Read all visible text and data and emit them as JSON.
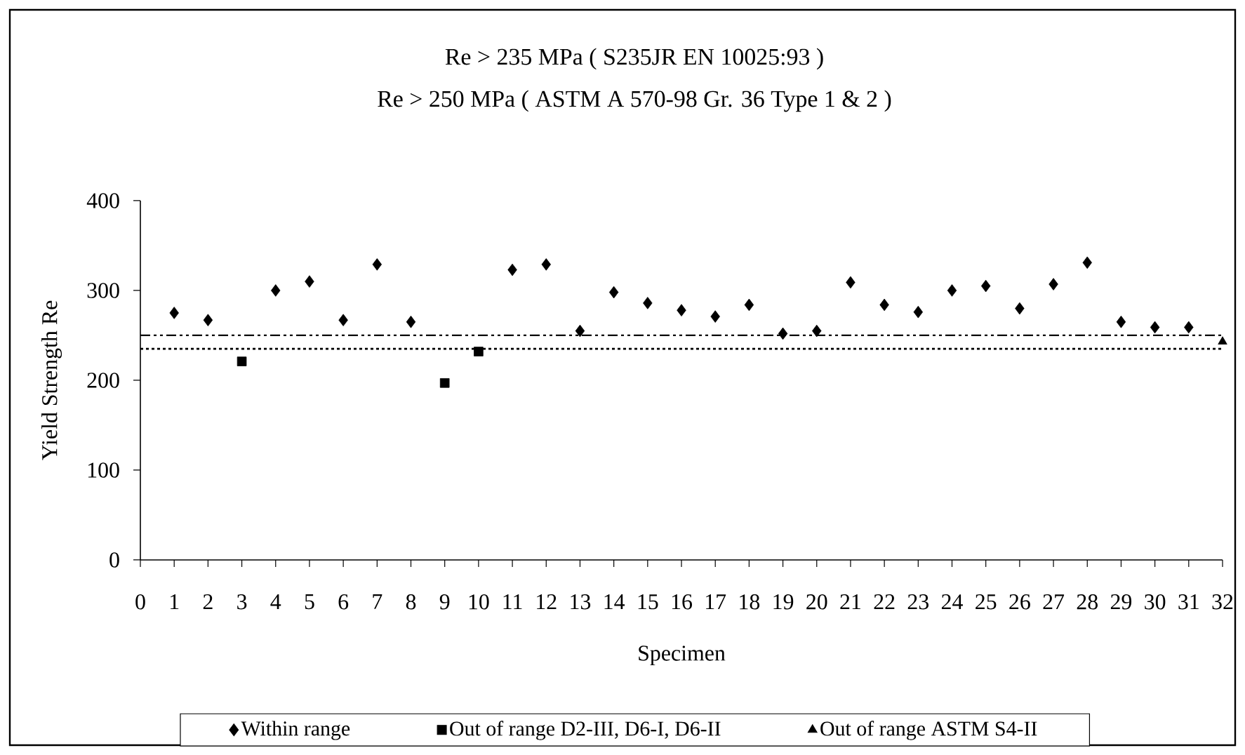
{
  "chart_data": {
    "type": "scatter",
    "title": "Re > 235 MPa ( S235JR EN 10025:93 )",
    "subtitle": "Re > 250 MPa ( ASTM A 570-98 Gr. 36 Type 1 & 2 )",
    "xlabel": "Specimen",
    "ylabel": "Yield Strength Re",
    "xlim": [
      0,
      32
    ],
    "ylim": [
      0,
      400
    ],
    "xticks": [
      0,
      1,
      2,
      3,
      4,
      5,
      6,
      7,
      8,
      9,
      10,
      11,
      12,
      13,
      14,
      15,
      16,
      17,
      18,
      19,
      20,
      21,
      22,
      23,
      24,
      25,
      26,
      27,
      28,
      29,
      30,
      31,
      32
    ],
    "yticks": [
      0,
      100,
      200,
      300,
      400
    ],
    "legend": "bottom",
    "series": [
      {
        "name": "Within range",
        "color": "#000000",
        "marker": "diamond",
        "x": [
          1,
          2,
          4,
          5,
          6,
          7,
          8,
          11,
          12,
          13,
          14,
          15,
          16,
          17,
          18,
          19,
          20,
          21,
          22,
          23,
          24,
          25,
          26,
          27,
          28,
          29,
          30,
          31
        ],
        "values": [
          275,
          267,
          300,
          310,
          267,
          329,
          265,
          323,
          329,
          255,
          298,
          286,
          278,
          271,
          284,
          252,
          255,
          309,
          284,
          276,
          300,
          305,
          280,
          307,
          331,
          265,
          259,
          259
        ]
      },
      {
        "name": "Out of range D2-III, D6-I, D6-II",
        "color": "#000000",
        "marker": "square",
        "x": [
          3,
          9,
          10
        ],
        "values": [
          221,
          197,
          232
        ]
      },
      {
        "name": "Out of range ASTM S4-II",
        "color": "#000000",
        "marker": "triangle",
        "x": [
          32
        ],
        "values": [
          243
        ]
      }
    ],
    "ref_lines": [
      {
        "axis": "y",
        "value": 250,
        "line_style": "dashdot",
        "color": "#000000"
      },
      {
        "axis": "y",
        "value": 235,
        "line_style": "dotted",
        "color": "#000000"
      }
    ]
  }
}
